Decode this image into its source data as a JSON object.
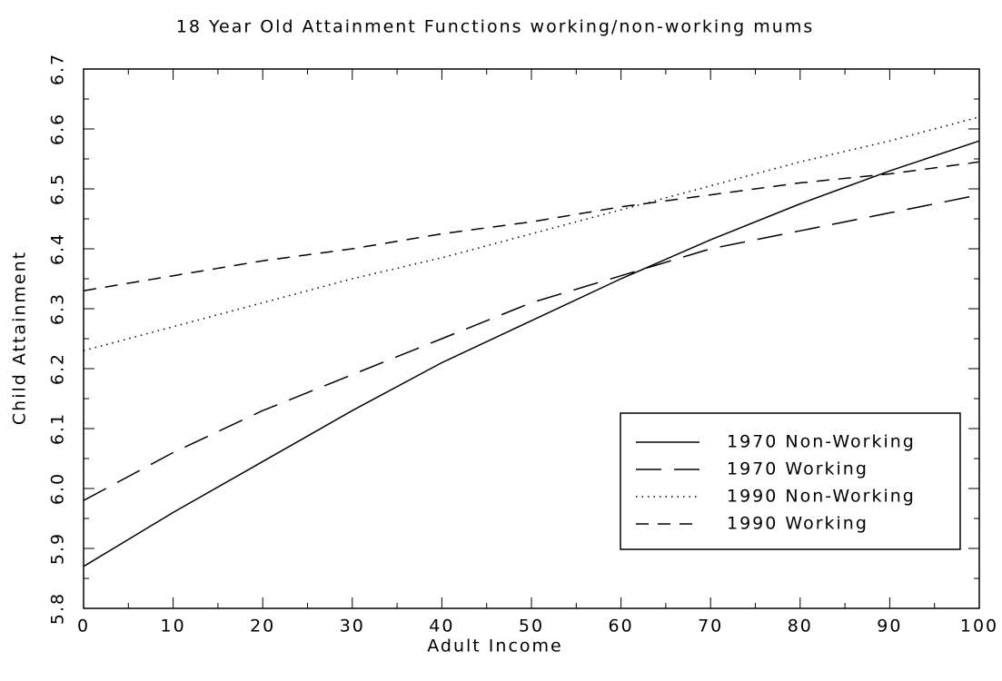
{
  "chart_data": {
    "type": "line",
    "title": "18 Year Old Attainment Functions working/non-working mums",
    "xlabel": "Adult Income",
    "ylabel": "Child Attainment",
    "x": [
      0,
      10,
      20,
      30,
      40,
      50,
      60,
      70,
      80,
      90,
      100
    ],
    "series": [
      {
        "name": "1970 Non-Working",
        "color": "#000000",
        "dash": "solid",
        "values": [
          5.87,
          5.96,
          6.045,
          6.13,
          6.21,
          6.28,
          6.35,
          6.415,
          6.475,
          6.53,
          6.58
        ]
      },
      {
        "name": "1970 Working",
        "color": "#000000",
        "dash": "longdash",
        "values": [
          5.98,
          6.06,
          6.13,
          6.19,
          6.25,
          6.31,
          6.355,
          6.4,
          6.43,
          6.46,
          6.49
        ]
      },
      {
        "name": "1990 Non-Working",
        "color": "#000000",
        "dash": "dotted",
        "values": [
          6.23,
          6.27,
          6.31,
          6.35,
          6.385,
          6.425,
          6.465,
          6.505,
          6.545,
          6.58,
          6.62
        ]
      },
      {
        "name": "1990 Working",
        "color": "#000000",
        "dash": "dashed",
        "values": [
          6.33,
          6.355,
          6.38,
          6.4,
          6.425,
          6.445,
          6.47,
          6.49,
          6.51,
          6.525,
          6.545
        ]
      }
    ],
    "xlim": [
      0,
      100
    ],
    "xticks": [
      0,
      10,
      20,
      30,
      40,
      50,
      60,
      70,
      80,
      90,
      100
    ],
    "xminorticks": [
      5,
      15,
      25,
      35,
      45,
      55,
      65,
      75,
      85,
      95
    ],
    "ylim": [
      5.8,
      6.7
    ],
    "yticks": [
      5.8,
      5.9,
      {
        "value": 6,
        "label": "6.0"
      },
      6.1,
      6.2,
      6.3,
      6.4,
      6.5,
      6.6,
      6.7
    ],
    "yminorticks": [
      5.85,
      5.95,
      6.05,
      6.15,
      6.25,
      6.35,
      6.45,
      6.55,
      6.65
    ],
    "grid": false,
    "legend": "lower right"
  }
}
